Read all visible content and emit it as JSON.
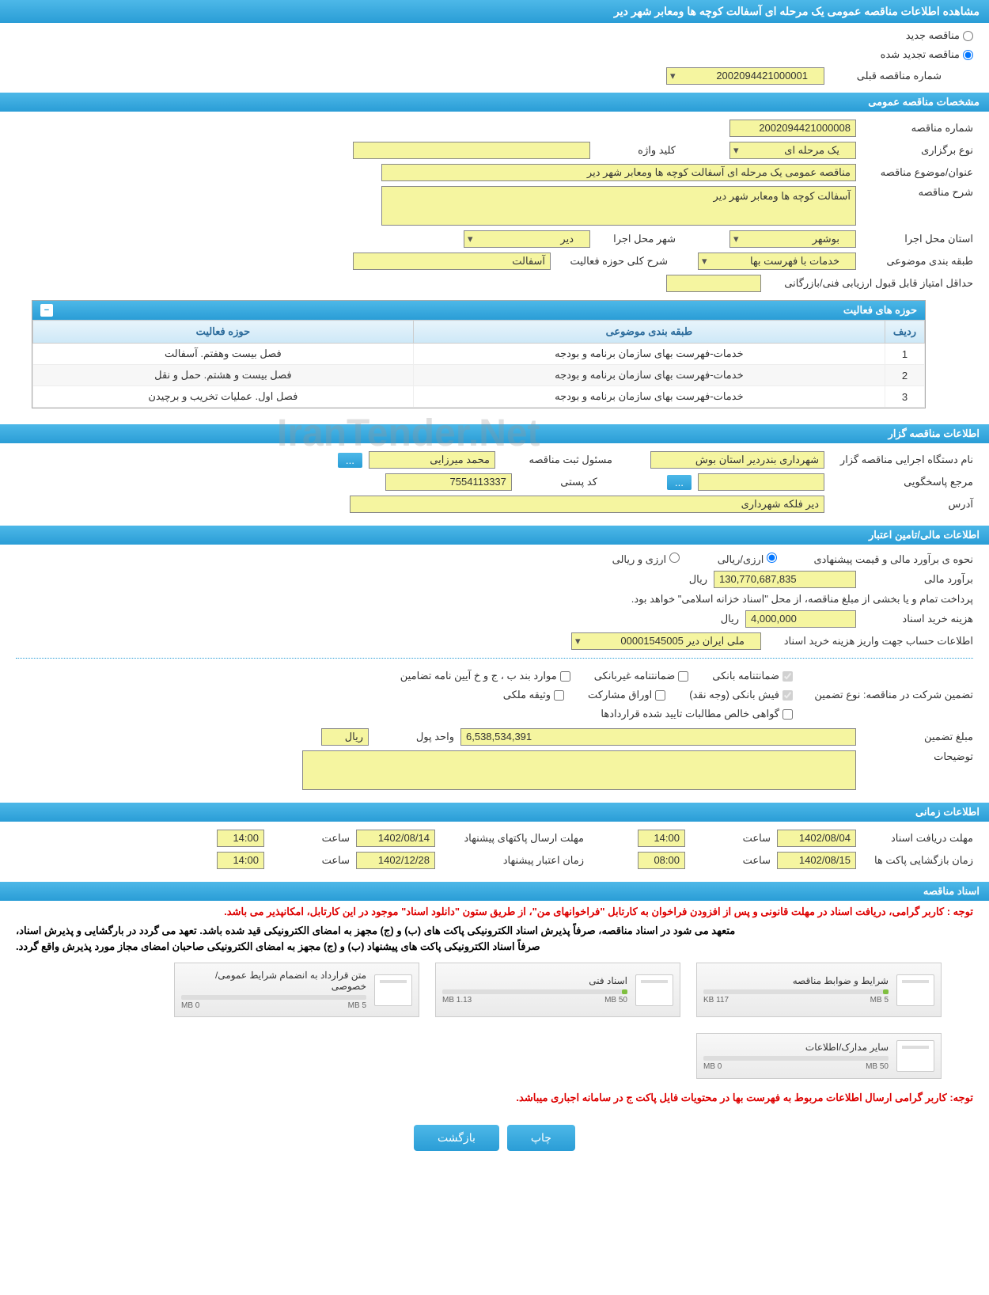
{
  "page_title": "مشاهده اطلاعات مناقصه عمومی یک مرحله ای آسفالت کوچه ها ومعابر شهر دیر",
  "tender_status": {
    "new_label": "مناقصه جدید",
    "renewed_label": "مناقصه تجدید شده",
    "renewed_checked": true
  },
  "prev_number": {
    "label": "شماره مناقصه قبلی",
    "value": "2002094421000001"
  },
  "sections": {
    "general": "مشخصات مناقصه عمومی",
    "organizer": "اطلاعات مناقصه گزار",
    "financial": "اطلاعات مالی/تامین اعتبار",
    "timing": "اطلاعات زمانی",
    "documents": "اسناد مناقصه"
  },
  "general": {
    "number_label": "شماره مناقصه",
    "number": "2002094421000008",
    "type_label": "نوع برگزاری",
    "type": "یک مرحله ای",
    "keyword_label": "کلید واژه",
    "keyword": "",
    "subject_label": "عنوان/موضوع مناقصه",
    "subject": "مناقصه عمومی یک مرحله ای آسفالت کوچه ها ومعابر شهر دیر",
    "desc_label": "شرح مناقصه",
    "desc": "آسفالت کوچه ها ومعابر شهر دیر",
    "province_label": "استان محل اجرا",
    "province": "بوشهر",
    "city_label": "شهر محل اجرا",
    "city": "دیر",
    "category_label": "طبقه بندی موضوعی",
    "category": "خدمات با فهرست بها",
    "scope_label": "شرح کلی حوزه فعالیت",
    "scope": "آسفالت",
    "min_score_label": "حداقل امتیاز قابل قبول ارزیابی فنی/بازرگانی",
    "min_score": ""
  },
  "activity_table": {
    "title": "حوزه های فعالیت",
    "columns": [
      "ردیف",
      "طبقه بندی موضوعی",
      "حوزه فعالیت"
    ],
    "rows": [
      [
        "1",
        "خدمات-فهرست بهای سازمان برنامه و بودجه",
        "فصل بیست وهفتم. آسفالت"
      ],
      [
        "2",
        "خدمات-فهرست بهای سازمان برنامه و بودجه",
        "فصل بیست و هشتم. حمل و نقل"
      ],
      [
        "3",
        "خدمات-فهرست بهای سازمان برنامه و بودجه",
        "فصل اول. عملیات تخریب و برچیدن"
      ]
    ]
  },
  "organizer": {
    "org_label": "نام دستگاه اجرایی مناقصه گزار",
    "org": "شهرداری بندردیر استان بوش",
    "responsible_label": "مسئول ثبت مناقصه",
    "responsible": "محمد میرزایی",
    "contact_label": "مرجع پاسخگویی",
    "contact": "",
    "postal_label": "کد پستی",
    "postal": "7554113337",
    "address_label": "آدرس",
    "address": "دیر فلکه شهرداری"
  },
  "financial": {
    "method_label": "نحوه ی برآورد مالی و قیمت پیشنهادی",
    "radio_fx": "ارزی/ریالی",
    "radio_rial": "ارزی و ریالی",
    "estimate_label": "برآورد مالی",
    "estimate": "130,770,687,835",
    "currency": "ریال",
    "payment_note": "پرداخت تمام و یا بخشی از مبلغ مناقصه، از محل \"اسناد خزانه اسلامی\" خواهد بود.",
    "doc_cost_label": "هزینه خرید اسناد",
    "doc_cost": "4,000,000",
    "account_label": "اطلاعات حساب جهت واریز هزینه خرید اسناد",
    "account": "ملی ایران دیر 00001545005",
    "guarantee_label": "تضمین شرکت در مناقصه:   نوع تضمین",
    "chk_bank": "ضمانتنامه بانکی",
    "chk_nonbank": "ضمانتنامه غیربانکی",
    "chk_cases": "موارد بند ب ، ج و خ آیین نامه تضامین",
    "chk_cash": "فیش بانکی (وجه نقد)",
    "chk_bonds": "اوراق مشارکت",
    "chk_property": "وثیقه ملکی",
    "chk_claims": "گواهی خالص مطالبات تایید شده قراردادها",
    "guarantee_amount_label": "مبلغ تضمین",
    "guarantee_amount": "6,538,534,391",
    "unit_label": "واحد پول",
    "unit": "ریال",
    "notes_label": "توضیحات",
    "notes": ""
  },
  "timing": {
    "receive_label": "مهلت دریافت اسناد",
    "receive_date": "1402/08/04",
    "receive_time_label": "ساعت",
    "receive_time": "14:00",
    "send_label": "مهلت ارسال پاکتهای پیشنهاد",
    "send_date": "1402/08/14",
    "send_time": "14:00",
    "open_label": "زمان بازگشایی پاکت ها",
    "open_date": "1402/08/15",
    "open_time": "08:00",
    "validity_label": "زمان اعتبار پیشنهاد",
    "validity_date": "1402/12/28",
    "validity_time": "14:00"
  },
  "notes": {
    "red1": "توجه : کاربر گرامی، دریافت اسناد در مهلت قانونی و پس از افزودن فراخوان به کارتابل \"فراخوانهای من\"، از طریق ستون \"دانلود اسناد\" موجود در این کارتابل، امکانپذیر می باشد.",
    "black1": "متعهد می شود در اسناد مناقصه، صرفاً پذیرش اسناد الکترونیکی پاکت های (ب) و (ج) مجهز به امضای الکترونیکی قید شده باشد. تعهد می گردد در بارگشایی و پذیرش اسناد،",
    "black2": "صرفاً اسناد الکترونیکی پاکت های پیشنهاد (ب) و (ج) مجهز به امضای الکترونیکی صاحبان امضای مجاز مورد پذیرش واقع گردد.",
    "red2": "توجه: کاربر گرامی ارسال اطلاعات مربوط به فهرست بها در محتویات فایل پاکت ج در سامانه اجباری میباشد."
  },
  "documents": [
    {
      "title": "شرایط و ضوابط مناقصه",
      "used": "117 KB",
      "total": "5 MB",
      "fill_pct": 3
    },
    {
      "title": "اسناد فنی",
      "used": "1.13 MB",
      "total": "50 MB",
      "fill_pct": 3
    },
    {
      "title": "متن قرارداد به انضمام شرایط عمومی/خصوصی",
      "used": "0 MB",
      "total": "5 MB",
      "fill_pct": 0
    },
    {
      "title": "سایر مدارک/اطلاعات",
      "used": "0 MB",
      "total": "50 MB",
      "fill_pct": 0
    }
  ],
  "buttons": {
    "print": "چاپ",
    "back": "بازگشت",
    "dots": "..."
  },
  "watermark": "IranTender.Net",
  "colors": {
    "header_grad_top": "#4db8e8",
    "header_grad_bot": "#2a9dd6",
    "yellow_field": "#f5f5a0",
    "red_text": "#d00"
  }
}
